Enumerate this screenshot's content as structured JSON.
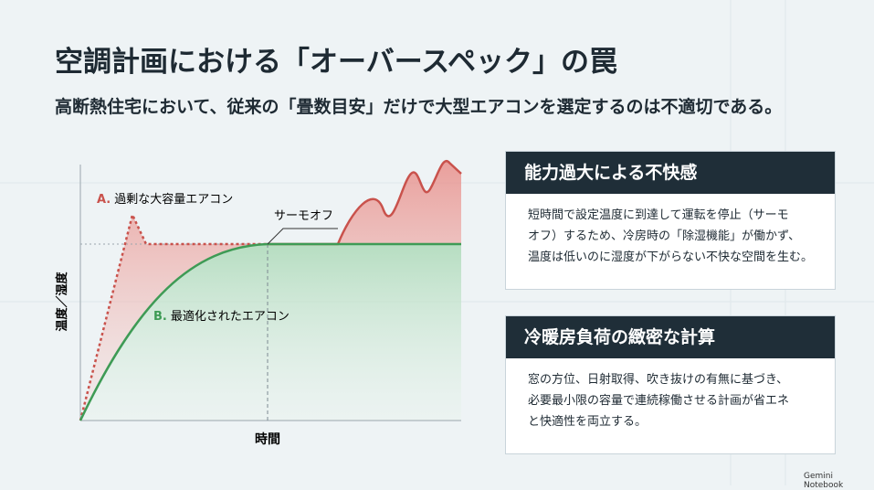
{
  "header": {
    "title": "空調計画における「オーバースペック」の罠",
    "subtitle": "高断熱住宅において、従来の「畳数目安」だけで大型エアコンを選定するのは不適切である。"
  },
  "diagram": {
    "y_axis_label": "温度／湿度",
    "x_axis_label": "時間",
    "curve_a": {
      "prefix": "A.",
      "label": "過剰な大容量エアコン"
    },
    "curve_b": {
      "prefix": "B.",
      "label": "最適化されたエアコン"
    },
    "annotation": "サーモオフ"
  },
  "cards": [
    {
      "title": "能力過大による不快感",
      "lines": [
        "短時間で設定温度に到達して運転を停止（サーモ",
        "オフ）するため、冷房時の「除湿機能」が働かず、",
        "温度は低いのに湿度が下がらない不快な空間を生む。"
      ]
    },
    {
      "title": "冷暖房負荷の緻密な計算",
      "lines": [
        "窓の方位、日射取得、吹き抜けの有無に基づき、",
        "必要最小限の容量で連続稼働させる計画が省エネ",
        "と快適性を両立する。"
      ]
    }
  ],
  "footer": "Gemini Notebook"
}
